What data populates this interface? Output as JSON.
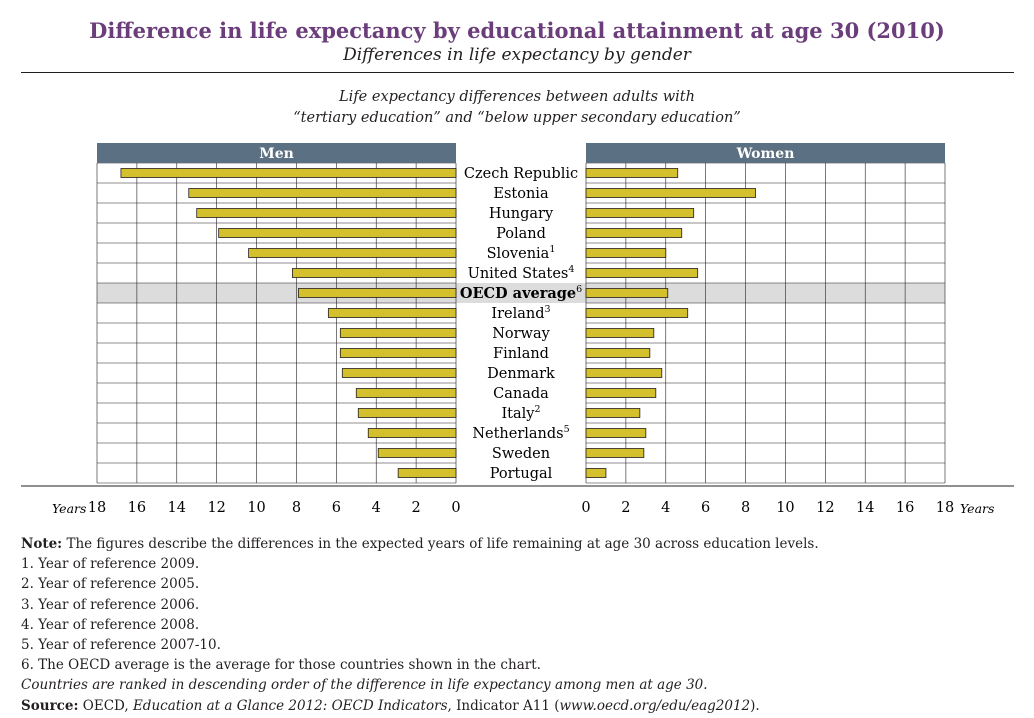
{
  "title": "Difference in life expectancy by educational attainment at age 30 (2010)",
  "subtitle": "Differences in life expectancy by gender",
  "chart_caption": {
    "line1": "Life expectancy differences between adults with",
    "line2": "“tertiary education” and “below upper secondary education”"
  },
  "colors": {
    "bar_fill": "#d4bf2c",
    "bar_stroke": "#231f20",
    "header_band": "#5b7083",
    "header_text": "#ffffff",
    "highlight_row": "#dcdcdc",
    "title": "#6b3d7a"
  },
  "chart_data": {
    "type": "bar",
    "orientation": "horizontal",
    "layout": "back-to-back",
    "categories": [
      "Czech Republic",
      "Estonia",
      "Hungary",
      "Poland",
      "Slovenia",
      "United States",
      "OECD average",
      "Ireland",
      "Norway",
      "Finland",
      "Denmark",
      "Canada",
      "Italy",
      "Netherlands",
      "Sweden",
      "Portugal"
    ],
    "category_superscripts": [
      "",
      "",
      "",
      "",
      "1",
      "4",
      "6",
      "3",
      "",
      "",
      "",
      "",
      "2",
      "5",
      "",
      ""
    ],
    "highlight_category": "OECD average",
    "series": [
      {
        "name": "Men",
        "values": [
          16.8,
          13.4,
          13.0,
          11.9,
          10.4,
          8.2,
          7.9,
          6.4,
          5.8,
          5.8,
          5.7,
          5.0,
          4.9,
          4.4,
          3.9,
          2.9
        ]
      },
      {
        "name": "Women",
        "values": [
          4.6,
          8.5,
          5.4,
          4.8,
          4.0,
          5.6,
          4.1,
          5.1,
          3.4,
          3.2,
          3.8,
          3.5,
          2.7,
          3.0,
          2.9,
          1.0
        ]
      }
    ],
    "xlabel": "Years",
    "xlim": [
      0,
      18
    ],
    "ticks": [
      "0",
      "2",
      "4",
      "6",
      "8",
      "10",
      "12",
      "14",
      "16",
      "18"
    ],
    "grid": true
  },
  "notes": {
    "note_label": "Note:",
    "note_text": " The figures describe the differences in the expected years of life remaining at age 30 across education levels.",
    "footnotes": [
      "1. Year of reference 2009.",
      "2. Year of reference 2005.",
      "3. Year of reference 2006.",
      "4. Year of reference 2008.",
      "5. Year of reference 2007-10.",
      "6. The OECD average is the average for those countries shown in the chart."
    ],
    "ranking_note": "Countries are ranked in descending order of the difference in life expectancy among men at age 30.",
    "source_label": "Source:",
    "source_part1": " OECD, ",
    "source_part2": "Education at a Glance 2012: OECD Indicators",
    "source_part3": ", Indicator A11 (",
    "source_part4": "www.oecd.org/edu/eag2012",
    "source_part5": ")."
  }
}
